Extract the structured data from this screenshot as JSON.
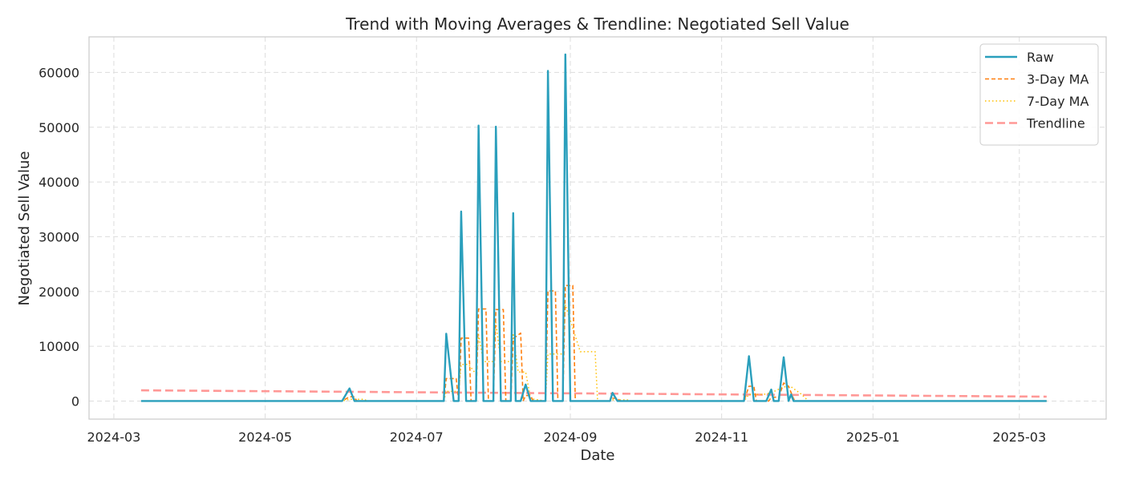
{
  "chart_data": {
    "type": "line",
    "title": "Trend with Moving Averages & Trendline: Negotiated Sell Value",
    "xlabel": "Date",
    "ylabel": "Negotiated Sell Value",
    "x_ticks": [
      "2024-03",
      "2024-05",
      "2024-07",
      "2024-09",
      "2024-11",
      "2025-01",
      "2025-03"
    ],
    "y_ticks": [
      0,
      10000,
      20000,
      30000,
      40000,
      50000,
      60000
    ],
    "ylim": [
      -3300,
      66500
    ],
    "xlim": [
      "2024-02-20",
      "2025-04-05"
    ],
    "grid": true,
    "legend_position": "top-right",
    "series": [
      {
        "name": "Raw",
        "color": "#2a9fbc",
        "style": "solid",
        "points": [
          [
            "2024-03-12",
            0
          ],
          [
            "2024-06-01",
            0
          ],
          [
            "2024-06-04",
            2300
          ],
          [
            "2024-06-06",
            0
          ],
          [
            "2024-07-12",
            0
          ],
          [
            "2024-07-13",
            12300
          ],
          [
            "2024-07-16",
            0
          ],
          [
            "2024-07-18",
            0
          ],
          [
            "2024-07-19",
            34600
          ],
          [
            "2024-07-21",
            0
          ],
          [
            "2024-07-25",
            0
          ],
          [
            "2024-07-26",
            50300
          ],
          [
            "2024-07-28",
            0
          ],
          [
            "2024-08-01",
            0
          ],
          [
            "2024-08-02",
            50100
          ],
          [
            "2024-08-04",
            0
          ],
          [
            "2024-08-08",
            0
          ],
          [
            "2024-08-09",
            34300
          ],
          [
            "2024-08-10",
            0
          ],
          [
            "2024-08-12",
            0
          ],
          [
            "2024-08-14",
            3000
          ],
          [
            "2024-08-16",
            0
          ],
          [
            "2024-08-22",
            0
          ],
          [
            "2024-08-23",
            60300
          ],
          [
            "2024-08-25",
            0
          ],
          [
            "2024-08-29",
            0
          ],
          [
            "2024-08-30",
            63300
          ],
          [
            "2024-09-01",
            0
          ],
          [
            "2024-09-17",
            0
          ],
          [
            "2024-09-18",
            1500
          ],
          [
            "2024-09-20",
            0
          ],
          [
            "2024-11-10",
            0
          ],
          [
            "2024-11-12",
            8200
          ],
          [
            "2024-11-14",
            0
          ],
          [
            "2024-11-19",
            0
          ],
          [
            "2024-11-21",
            2100
          ],
          [
            "2024-11-22",
            0
          ],
          [
            "2024-11-24",
            0
          ],
          [
            "2024-11-26",
            8000
          ],
          [
            "2024-11-28",
            0
          ],
          [
            "2024-11-29",
            1200
          ],
          [
            "2024-11-30",
            0
          ],
          [
            "2025-03-12",
            0
          ]
        ]
      },
      {
        "name": "3-Day MA",
        "color": "#ff7f0e",
        "style": "dashed",
        "points": [
          [
            "2024-03-14",
            0
          ],
          [
            "2024-06-01",
            0
          ],
          [
            "2024-06-04",
            770
          ],
          [
            "2024-06-06",
            770
          ],
          [
            "2024-06-07",
            0
          ],
          [
            "2024-07-12",
            0
          ],
          [
            "2024-07-13",
            4100
          ],
          [
            "2024-07-17",
            4100
          ],
          [
            "2024-07-18",
            0
          ],
          [
            "2024-07-19",
            11500
          ],
          [
            "2024-07-22",
            11500
          ],
          [
            "2024-07-23",
            0
          ],
          [
            "2024-07-25",
            0
          ],
          [
            "2024-07-26",
            16800
          ],
          [
            "2024-07-29",
            16800
          ],
          [
            "2024-07-30",
            0
          ],
          [
            "2024-08-01",
            0
          ],
          [
            "2024-08-02",
            16700
          ],
          [
            "2024-08-05",
            16700
          ],
          [
            "2024-08-06",
            0
          ],
          [
            "2024-08-08",
            0
          ],
          [
            "2024-08-09",
            11400
          ],
          [
            "2024-08-12",
            12400
          ],
          [
            "2024-08-13",
            0
          ],
          [
            "2024-08-14",
            1000
          ],
          [
            "2024-08-16",
            1000
          ],
          [
            "2024-08-17",
            0
          ],
          [
            "2024-08-22",
            0
          ],
          [
            "2024-08-23",
            20100
          ],
          [
            "2024-08-26",
            20100
          ],
          [
            "2024-08-27",
            0
          ],
          [
            "2024-08-29",
            0
          ],
          [
            "2024-08-30",
            21100
          ],
          [
            "2024-09-02",
            21100
          ],
          [
            "2024-09-03",
            0
          ],
          [
            "2024-09-17",
            0
          ],
          [
            "2024-09-18",
            500
          ],
          [
            "2024-09-20",
            500
          ],
          [
            "2024-09-21",
            0
          ],
          [
            "2024-11-10",
            0
          ],
          [
            "2024-11-12",
            2700
          ],
          [
            "2024-11-14",
            2700
          ],
          [
            "2024-11-15",
            0
          ],
          [
            "2024-11-20",
            0
          ],
          [
            "2024-11-21",
            700
          ],
          [
            "2024-11-24",
            700
          ],
          [
            "2024-11-26",
            3300
          ],
          [
            "2024-11-28",
            2700
          ],
          [
            "2024-11-30",
            400
          ],
          [
            "2024-12-01",
            0
          ],
          [
            "2025-03-12",
            0
          ]
        ]
      },
      {
        "name": "7-Day MA",
        "color": "#ffbf00",
        "style": "dotted",
        "points": [
          [
            "2024-03-18",
            0
          ],
          [
            "2024-06-01",
            0
          ],
          [
            "2024-06-04",
            330
          ],
          [
            "2024-06-10",
            330
          ],
          [
            "2024-06-11",
            0
          ],
          [
            "2024-07-12",
            0
          ],
          [
            "2024-07-13",
            1760
          ],
          [
            "2024-07-18",
            1760
          ],
          [
            "2024-07-19",
            6700
          ],
          [
            "2024-07-22",
            6700
          ],
          [
            "2024-07-25",
            4900
          ],
          [
            "2024-07-26",
            12100
          ],
          [
            "2024-07-28",
            7200
          ],
          [
            "2024-08-01",
            7200
          ],
          [
            "2024-08-02",
            14300
          ],
          [
            "2024-08-04",
            7200
          ],
          [
            "2024-08-08",
            7200
          ],
          [
            "2024-08-09",
            12100
          ],
          [
            "2024-08-11",
            5300
          ],
          [
            "2024-08-14",
            5300
          ],
          [
            "2024-08-16",
            430
          ],
          [
            "2024-08-22",
            0
          ],
          [
            "2024-08-23",
            8600
          ],
          [
            "2024-08-29",
            8600
          ],
          [
            "2024-08-30",
            17600
          ],
          [
            "2024-09-05",
            9000
          ],
          [
            "2024-09-11",
            9000
          ],
          [
            "2024-09-12",
            0
          ],
          [
            "2024-09-17",
            0
          ],
          [
            "2024-09-18",
            210
          ],
          [
            "2024-09-24",
            210
          ],
          [
            "2024-09-25",
            0
          ],
          [
            "2024-11-10",
            0
          ],
          [
            "2024-11-12",
            1200
          ],
          [
            "2024-11-18",
            1200
          ],
          [
            "2024-11-21",
            1500
          ],
          [
            "2024-11-26",
            2600
          ],
          [
            "2024-11-29",
            2600
          ],
          [
            "2024-12-03",
            1300
          ],
          [
            "2024-12-06",
            0
          ],
          [
            "2025-03-12",
            0
          ]
        ]
      },
      {
        "name": "Trendline",
        "color": "#ff9896",
        "style": "dashed-thick",
        "points": [
          [
            "2024-03-12",
            1950
          ],
          [
            "2025-03-12",
            800
          ]
        ]
      }
    ]
  }
}
